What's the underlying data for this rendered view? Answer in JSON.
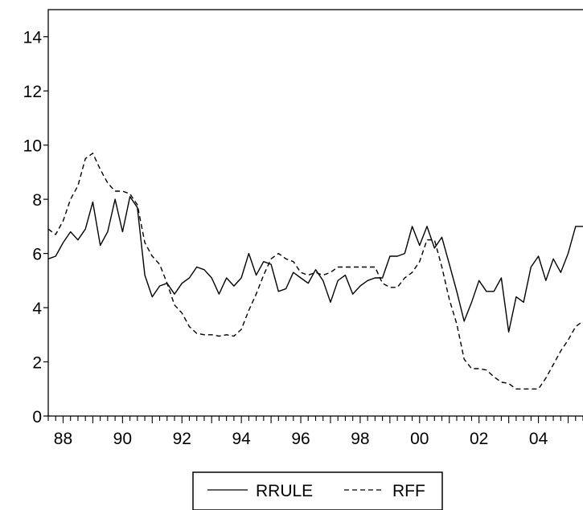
{
  "chart_data": {
    "type": "line",
    "title": "",
    "xlabel": "",
    "ylabel": "",
    "xlim": [
      1987.5,
      2005.5
    ],
    "ylim": [
      0,
      15
    ],
    "grid": false,
    "legend_position": "bottom-center",
    "x_tick_labels": [
      {
        "x": 1988,
        "label": "88"
      },
      {
        "x": 1990,
        "label": "90"
      },
      {
        "x": 1992,
        "label": "92"
      },
      {
        "x": 1994,
        "label": "94"
      },
      {
        "x": 1996,
        "label": "96"
      },
      {
        "x": 1998,
        "label": "98"
      },
      {
        "x": 2000,
        "label": "00"
      },
      {
        "x": 2002,
        "label": "02"
      },
      {
        "x": 2004,
        "label": "04"
      }
    ],
    "y_ticks": [
      0,
      2,
      4,
      6,
      8,
      10,
      12,
      14
    ],
    "x": [
      1987.5,
      1987.75,
      1988.0,
      1988.25,
      1988.5,
      1988.75,
      1989.0,
      1989.25,
      1989.5,
      1989.75,
      1990.0,
      1990.25,
      1990.5,
      1990.75,
      1991.0,
      1991.25,
      1991.5,
      1991.75,
      1992.0,
      1992.25,
      1992.5,
      1992.75,
      1993.0,
      1993.25,
      1993.5,
      1993.75,
      1994.0,
      1994.25,
      1994.5,
      1994.75,
      1995.0,
      1995.25,
      1995.5,
      1995.75,
      1996.0,
      1996.25,
      1996.5,
      1996.75,
      1997.0,
      1997.25,
      1997.5,
      1997.75,
      1998.0,
      1998.25,
      1998.5,
      1998.75,
      1999.0,
      1999.25,
      1999.5,
      1999.75,
      2000.0,
      2000.25,
      2000.5,
      2000.75,
      2001.0,
      2001.25,
      2001.5,
      2001.75,
      2002.0,
      2002.25,
      2002.5,
      2002.75,
      2003.0,
      2003.25,
      2003.5,
      2003.75,
      2004.0,
      2004.25,
      2004.5,
      2004.75,
      2005.0,
      2005.25,
      2005.5
    ],
    "series": [
      {
        "name": "RRULE",
        "line_style": "solid",
        "values": [
          5.8,
          5.9,
          6.4,
          6.8,
          6.5,
          6.9,
          7.9,
          6.3,
          6.8,
          8.0,
          6.8,
          8.1,
          7.7,
          5.2,
          4.4,
          4.8,
          4.9,
          4.5,
          4.9,
          5.1,
          5.5,
          5.4,
          5.1,
          4.5,
          5.1,
          4.8,
          5.1,
          6.0,
          5.2,
          5.7,
          5.6,
          4.6,
          4.7,
          5.3,
          5.1,
          4.9,
          5.4,
          5.0,
          4.2,
          5.0,
          5.2,
          4.5,
          4.8,
          5.0,
          5.1,
          5.1,
          5.9,
          5.9,
          6.0,
          7.0,
          6.3,
          7.0,
          6.2,
          6.6,
          5.6,
          4.6,
          3.5,
          4.2,
          5.0,
          4.6,
          4.6,
          5.1,
          3.1,
          4.4,
          4.2,
          5.5,
          5.9,
          5.0,
          5.8,
          5.3,
          6.0,
          7.0,
          7.0
        ]
      },
      {
        "name": "RFF",
        "line_style": "dashed",
        "values": [
          6.9,
          6.7,
          7.2,
          8.0,
          8.5,
          9.5,
          9.7,
          9.1,
          8.6,
          8.3,
          8.3,
          8.2,
          7.8,
          6.4,
          5.9,
          5.6,
          4.9,
          4.1,
          3.8,
          3.3,
          3.05,
          3.0,
          3.0,
          2.95,
          3.0,
          2.95,
          3.2,
          3.9,
          4.5,
          5.2,
          5.8,
          6.0,
          5.8,
          5.7,
          5.3,
          5.2,
          5.3,
          5.2,
          5.3,
          5.5,
          5.5,
          5.5,
          5.5,
          5.5,
          5.5,
          4.9,
          4.75,
          4.75,
          5.1,
          5.3,
          5.7,
          6.5,
          6.5,
          5.5,
          4.3,
          3.4,
          2.1,
          1.75,
          1.75,
          1.7,
          1.45,
          1.25,
          1.2,
          1.0,
          1.0,
          1.0,
          1.0,
          1.4,
          1.9,
          2.4,
          2.8,
          3.3,
          3.5
        ]
      }
    ]
  }
}
